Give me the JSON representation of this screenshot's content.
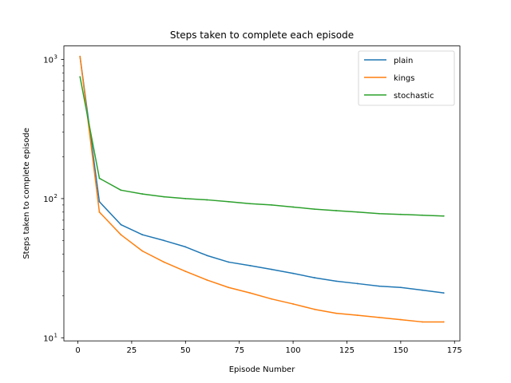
{
  "chart_data": {
    "type": "line",
    "title": "Steps taken to complete each episode",
    "xlabel": "Episode Number",
    "ylabel": "Steps taken to complete episode",
    "xlim": [
      -6.5,
      177.5
    ],
    "ylim": [
      9.5,
      1250
    ],
    "yscale": "log",
    "xticks": [
      0,
      25,
      50,
      75,
      100,
      125,
      150,
      175
    ],
    "xtick_labels": [
      "0",
      "25",
      "50",
      "75",
      "100",
      "125",
      "150",
      "175"
    ],
    "yticks": [
      10,
      100,
      1000
    ],
    "ytick_labels": [
      "10",
      "10",
      "10"
    ],
    "ytick_exponents": [
      "1",
      "2",
      "3"
    ],
    "grid": false,
    "legend_position": "upper right",
    "x": [
      1,
      10,
      20,
      30,
      40,
      50,
      60,
      70,
      80,
      90,
      100,
      110,
      120,
      130,
      140,
      150,
      160,
      170
    ],
    "series": [
      {
        "name": "plain",
        "color": "#1f77b4",
        "values": [
          1050,
          95,
          65,
          55,
          50,
          45,
          39,
          35,
          33,
          31,
          29,
          27,
          25.5,
          24.5,
          23.5,
          23,
          22,
          21
        ]
      },
      {
        "name": "kings",
        "color": "#ff7f0e",
        "values": [
          1050,
          80,
          55,
          42,
          35,
          30,
          26,
          23,
          21,
          19,
          17.5,
          16,
          15,
          14.5,
          14,
          13.5,
          13,
          13
        ]
      },
      {
        "name": "stochastic",
        "color": "#2ca02c",
        "values": [
          750,
          140,
          115,
          108,
          103,
          100,
          98,
          95,
          92,
          90,
          87,
          84,
          82,
          80,
          78,
          77,
          76,
          75
        ]
      }
    ]
  }
}
